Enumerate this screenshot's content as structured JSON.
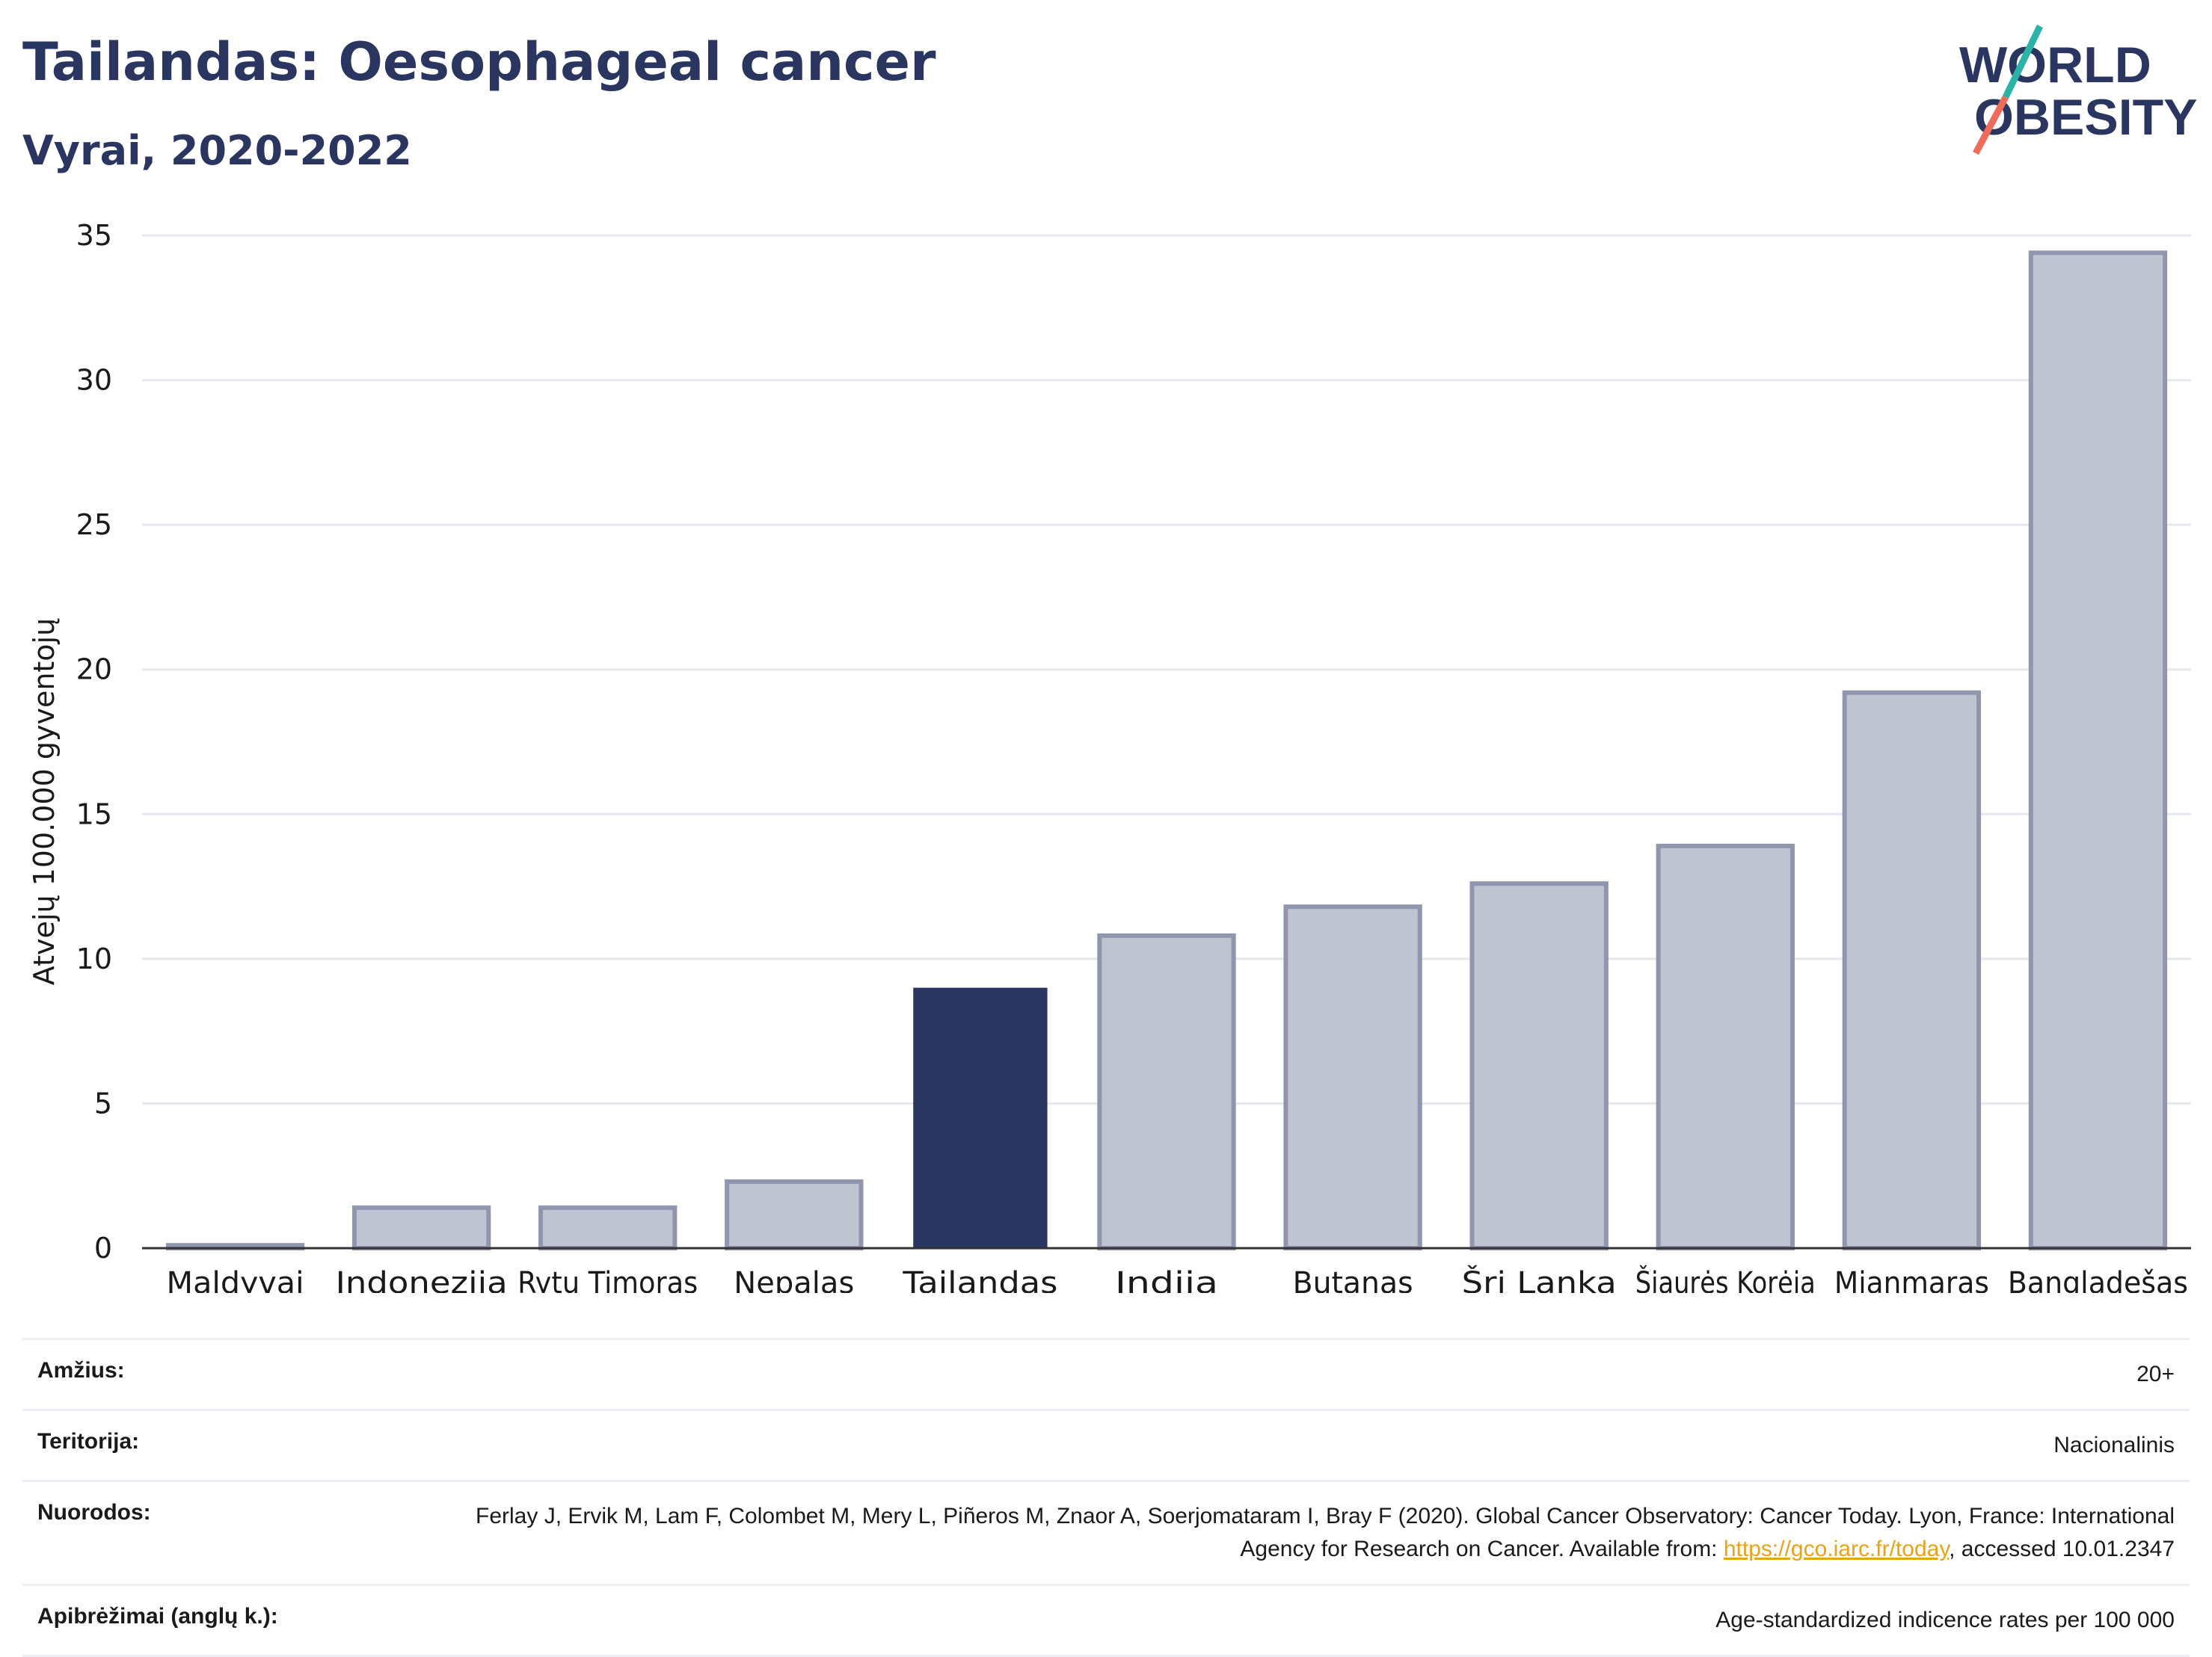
{
  "header": {
    "title": "Tailandas: Oesophageal cancer",
    "subtitle": "Vyrai, 2020-2022"
  },
  "logo": {
    "line1": "WORLD",
    "line2": "OBESITY"
  },
  "colors": {
    "highlight": "#2a3560",
    "bar_fill": "#c0c4d0",
    "bar_stroke": "#8f96ad",
    "grid": "#e6e8ee",
    "logo_teal": "#2bb3a8",
    "logo_coral": "#ef6b5a"
  },
  "chart_data": {
    "type": "bar",
    "title": "Tailandas: Oesophageal cancer",
    "subtitle": "Vyrai, 2020-2022",
    "xlabel": "",
    "ylabel": "Atvejų 100.000 gyventojų",
    "categories": [
      "Maldyvai",
      "Indonezija",
      "Rytų Timoras",
      "Nepalas",
      "Tailandas",
      "Indija",
      "Butanas",
      "Šri Lanka",
      "Šiaurės Korėja",
      "Mianmaras",
      "Bangladešas"
    ],
    "values": [
      0.1,
      1.4,
      1.4,
      2.3,
      9.0,
      10.8,
      11.8,
      12.6,
      13.9,
      19.2,
      34.4
    ],
    "highlight": "Tailandas",
    "ylim": [
      0,
      35
    ],
    "yticks": [
      0,
      5,
      10,
      15,
      20,
      25,
      30,
      35
    ],
    "grid": true,
    "legend": "none"
  },
  "info": {
    "age_label": "Amžius:",
    "age_value": "20+",
    "territory_label": "Teritorija:",
    "territory_value": "Nacionalinis",
    "refs_label": "Nuorodos:",
    "refs_text_1": "Ferlay J, Ervik M, Lam F, Colombet M, Mery L, Piñeros M, Znaor A, Soerjomataram I, Bray F (2020). Global Cancer Observatory: Cancer Today. Lyon, France: International Agency for Research on Cancer. Available from: ",
    "refs_link": "https://gco.iarc.fr/today",
    "refs_text_2": ", accessed 10.01.2347",
    "defs_label": "Apibrėžimai (anglų k.):",
    "defs_value": "Age-standardized indicence rates per 100 000"
  }
}
